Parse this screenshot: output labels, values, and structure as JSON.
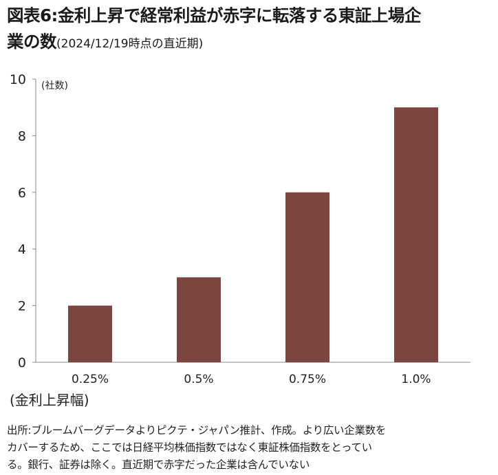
{
  "title_line1": "図表6:金利上昇で経常利益が赤字に転落する東証上場企",
  "title_line2": "業の数",
  "title_sub": "(2024/12/19時点の直近期)",
  "note_line1": "出所:ブルームバーグデータよりピクテ・ジャパン推計、作成。より広い企業数を",
  "note_line2": "カバーするため、ここでは日経平均株価指数ではなく東証株価指数をとってい",
  "note_line3": "る。銀行、証券は除く。直近期で赤字だった企業は含んでいない",
  "chart_data": {
    "type": "bar",
    "categories": [
      "0.25%",
      "0.5%",
      "0.75%",
      "1.0%"
    ],
    "values": [
      2,
      3,
      6,
      9
    ],
    "ylabel": "(社数)",
    "xlabel": "(金利上昇幅)",
    "ylim": [
      0,
      10
    ],
    "yticks": [
      0,
      2,
      4,
      6,
      8,
      10
    ],
    "grid": false,
    "bar_color": "#7b4640"
  }
}
